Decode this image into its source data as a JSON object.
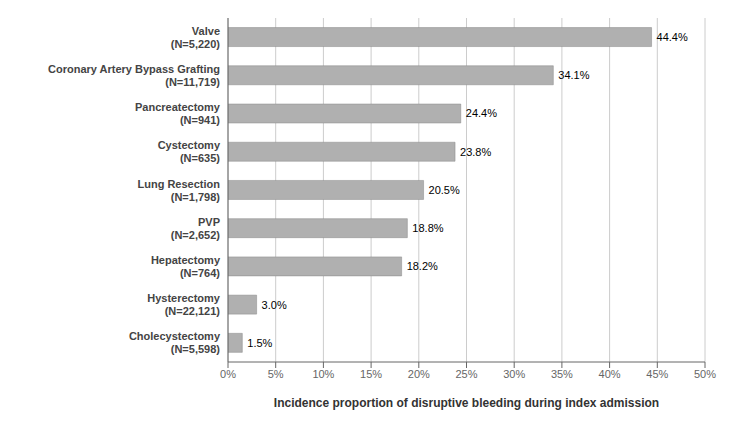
{
  "chart_data": {
    "type": "bar",
    "orientation": "horizontal",
    "categories": [
      "Valve\n(N=5,220)",
      "Coronary Artery Bypass Grafting\n(N=11,719)",
      "Pancreatectomy\n(N=941)",
      "Cystectomy\n(N=635)",
      "Lung Resection\n(N=1,798)",
      "PVP\n(N=2,652)",
      "Hepatectomy\n(N=764)",
      "Hysterectomy\n(N=22,121)",
      "Cholecystectomy\n(N=5,598)"
    ],
    "values": [
      44.4,
      34.1,
      24.4,
      23.8,
      20.5,
      18.8,
      18.2,
      3.0,
      1.5
    ],
    "value_labels": [
      "44.4%",
      "34.1%",
      "24.4%",
      "23.8%",
      "20.5%",
      "18.8%",
      "18.2%",
      "3.0%",
      "1.5%"
    ],
    "data_labels": true,
    "color": "#b0b0b0",
    "xlabel": "Incidence proportion of disruptive bleeding during index admission",
    "xlim": [
      0,
      50
    ],
    "xticks": [
      {
        "value": 0,
        "label": "0%"
      },
      {
        "value": 5,
        "label": "5%"
      },
      {
        "value": 10,
        "label": "10%"
      },
      {
        "value": 15,
        "label": "15%"
      },
      {
        "value": 20,
        "label": "20%"
      },
      {
        "value": 25,
        "label": "25%"
      },
      {
        "value": 30,
        "label": "30%"
      },
      {
        "value": 35,
        "label": "35%"
      },
      {
        "value": 40,
        "label": "40%"
      },
      {
        "value": 45,
        "label": "45%"
      },
      {
        "value": 50,
        "label": "50%"
      }
    ],
    "grid": true
  }
}
